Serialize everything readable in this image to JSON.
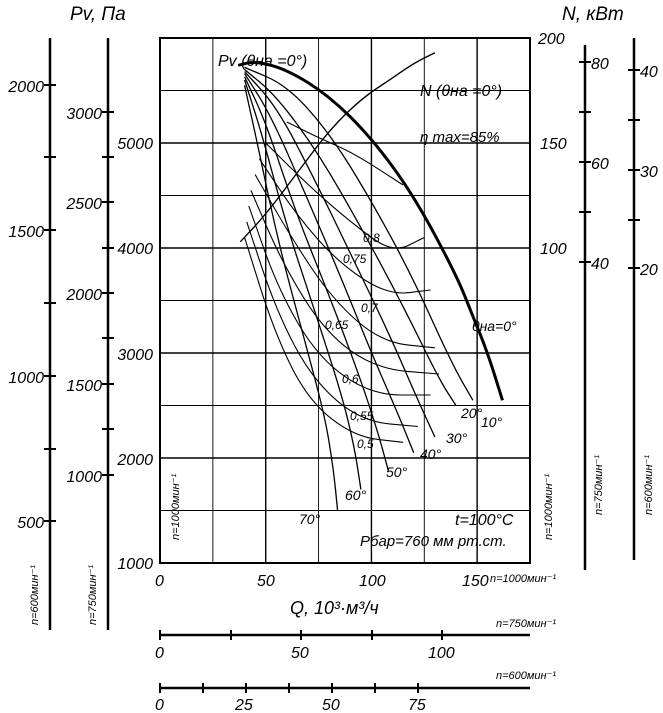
{
  "chart_data": {
    "type": "line",
    "headers": {
      "pv_unit": "Pv, Па",
      "n_unit": "N, кВт",
      "q_unit": "Q, 10³·м³/ч"
    },
    "main_axis": {
      "xlim": [
        0,
        175
      ],
      "ylim": [
        1000,
        6000
      ],
      "x_ticks": [
        "0",
        "50",
        "100",
        "150"
      ],
      "y_ticks": [
        "1000",
        "2000",
        "3000",
        "4000",
        "5000"
      ],
      "right_ticks": [
        "100",
        "150",
        "200"
      ],
      "grid": true
    },
    "left_scales": [
      {
        "ticks": [
          "500",
          "1000",
          "1500",
          "2000"
        ],
        "speed": "n=600мин⁻¹"
      },
      {
        "ticks": [
          "1000",
          "1500",
          "2000",
          "2500",
          "3000"
        ],
        "speed": "n=750мин⁻¹"
      },
      {
        "speed": "n=1000мин⁻¹"
      }
    ],
    "right_scales": [
      {
        "speed": "n=1000мин⁻¹"
      },
      {
        "ticks": [
          "40",
          "60",
          "80"
        ],
        "speed": "n=750мин⁻¹"
      },
      {
        "ticks": [
          "20",
          "30",
          "40"
        ],
        "speed": "n=600мин⁻¹"
      }
    ],
    "bottom_scales": [
      {
        "speed": "n=1000мин⁻¹"
      },
      {
        "ticks": [
          "0",
          "50",
          "100"
        ],
        "speed": "n=750мин⁻¹"
      },
      {
        "ticks": [
          "0",
          "25",
          "50",
          "75"
        ],
        "speed": "n=600мин⁻¹"
      }
    ],
    "series": [
      {
        "name": "Pv (θна=0°)",
        "x": [
          37,
          45,
          60,
          80,
          100,
          120,
          140,
          148
        ],
        "y": [
          5740,
          5780,
          5700,
          5450,
          5050,
          4500,
          3750,
          3350
        ]
      },
      {
        "name": "N (θна=0°)",
        "x": [
          38,
          50,
          65,
          80,
          95,
          110,
          120,
          130
        ],
        "y": [
          102,
          115,
          135,
          155,
          170,
          180,
          187,
          192
        ]
      }
    ],
    "blade_angle_curves": [
      {
        "angle": "θна=0°",
        "x": [
          148,
          155,
          162
        ],
        "y": [
          3350,
          3000,
          2550
        ]
      },
      {
        "angle": "10°",
        "x": [
          40,
          60,
          80,
          100,
          120,
          138,
          148
        ],
        "y": [
          5720,
          5550,
          5100,
          4450,
          3700,
          2900,
          2550
        ]
      },
      {
        "angle": "20°",
        "x": [
          40,
          55,
          75,
          95,
          115,
          132,
          140
        ],
        "y": [
          5700,
          5450,
          4900,
          4200,
          3450,
          2750,
          2500
        ]
      },
      {
        "angle": "30°",
        "x": [
          40,
          55,
          72,
          90,
          108,
          122,
          130
        ],
        "y": [
          5680,
          5350,
          4700,
          3950,
          3200,
          2550,
          2200
        ]
      },
      {
        "angle": "40°",
        "x": [
          40,
          52,
          68,
          85,
          100,
          113,
          120
        ],
        "y": [
          5660,
          5280,
          4550,
          3750,
          3000,
          2400,
          2050
        ]
      },
      {
        "angle": "50°",
        "x": [
          40,
          50,
          64,
          80,
          94,
          103,
          108
        ],
        "y": [
          5630,
          5200,
          4350,
          3550,
          2800,
          2250,
          1880
        ]
      },
      {
        "angle": "60°",
        "x": [
          40,
          48,
          60,
          74,
          86,
          92,
          95
        ],
        "y": [
          5600,
          5100,
          4200,
          3350,
          2600,
          2100,
          1700
        ]
      },
      {
        "angle": "70°",
        "x": [
          40,
          46,
          56,
          68,
          78,
          82,
          84
        ],
        "y": [
          5550,
          5000,
          4050,
          3150,
          2400,
          1900,
          1500
        ]
      }
    ],
    "efficiency_contours": [
      {
        "label": "η max=85%",
        "x": [
          60,
          75,
          92,
          115
        ],
        "y": [
          5200,
          5050,
          4900,
          4600
        ]
      },
      {
        "label": "0,8",
        "x": [
          50,
          70,
          90,
          110,
          125
        ],
        "y": [
          5000,
          4600,
          4250,
          3950,
          4100
        ]
      },
      {
        "label": "0,75",
        "x": [
          47,
          65,
          85,
          108,
          128
        ],
        "y": [
          4850,
          4300,
          3850,
          3550,
          3600
        ]
      },
      {
        "label": "0,7",
        "x": [
          45,
          62,
          82,
          105,
          130
        ],
        "y": [
          4700,
          4100,
          3500,
          3100,
          3050
        ]
      },
      {
        "label": "0,65",
        "x": [
          43,
          58,
          78,
          102,
          132
        ],
        "y": [
          4550,
          3850,
          3200,
          2850,
          2800
        ]
      },
      {
        "label": "0,6",
        "x": [
          42,
          56,
          75,
          100,
          128
        ],
        "y": [
          4400,
          3600,
          2950,
          2600,
          2600
        ]
      },
      {
        "label": "0,55",
        "x": [
          41,
          55,
          72,
          95,
          122
        ],
        "y": [
          4250,
          3400,
          2750,
          2350,
          2300
        ]
      },
      {
        "label": "0,5",
        "x": [
          40,
          54,
          70,
          92,
          115
        ],
        "y": [
          4100,
          3200,
          2550,
          2200,
          2150
        ]
      }
    ],
    "annotations": {
      "pv_label": "Pv (θна =0°)",
      "n_label": "N (θна =0°)",
      "eta_label": "η max=85%",
      "theta_label": "θна=0°",
      "eta_labels": [
        "0,8",
        "0,75",
        "0,7",
        "0,65",
        "0,6",
        "0,55",
        "0,5"
      ],
      "angle_labels": [
        "10°",
        "20°",
        "30°",
        "40°",
        "50°",
        "60°",
        "70°"
      ],
      "temperature": "t=100°C",
      "pressure": "Pбар=760 мм рт.ст."
    }
  }
}
